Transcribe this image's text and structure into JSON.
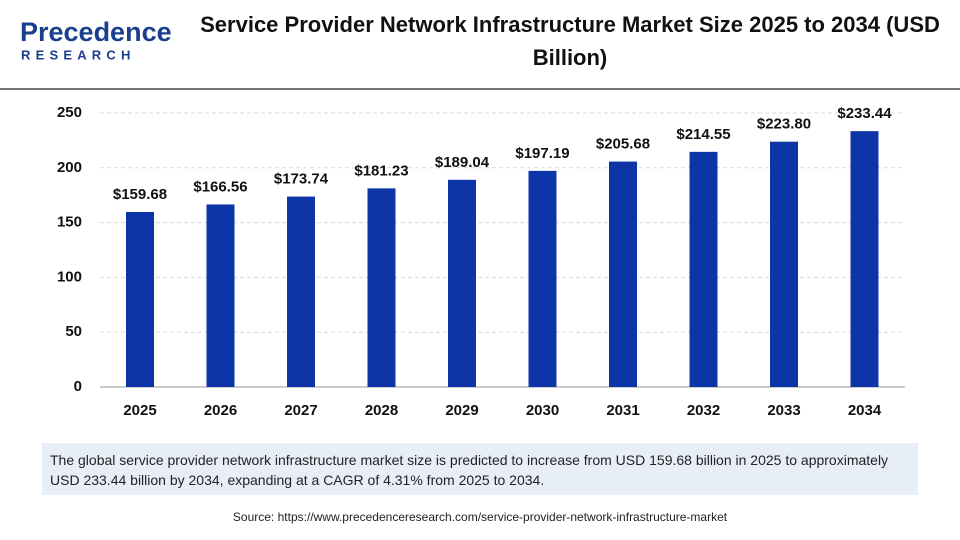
{
  "chart_data": {
    "type": "bar",
    "logo": {
      "name": "Precedence",
      "tagline": "RESEARCH"
    },
    "title": "Service Provider Network Infrastructure Market Size 2025 to 2034 (USD Billion)",
    "categories": [
      "2025",
      "2026",
      "2027",
      "2028",
      "2029",
      "2030",
      "2031",
      "2032",
      "2033",
      "2034"
    ],
    "values": [
      159.68,
      166.56,
      173.74,
      181.23,
      189.04,
      197.19,
      205.68,
      214.55,
      223.8,
      233.44
    ],
    "value_labels": [
      "$159.68",
      "$166.56",
      "$173.74",
      "$181.23",
      "$189.04",
      "$197.19",
      "$205.68",
      "$214.55",
      "$223.80",
      "$233.44"
    ],
    "color": "#0d35a8",
    "ylim": [
      0,
      250
    ],
    "yticks": [
      0,
      50,
      100,
      150,
      200,
      250
    ],
    "grid": true,
    "note": "The global service provider network infrastructure market size is predicted to increase from USD 159.68 billion in 2025 to approximately USD 233.44 billion by 2034, expanding at a CAGR of 4.31% from 2025 to 2034.",
    "source": "Source: https://www.precedenceresearch.com/service-provider-network-infrastructure-market"
  }
}
